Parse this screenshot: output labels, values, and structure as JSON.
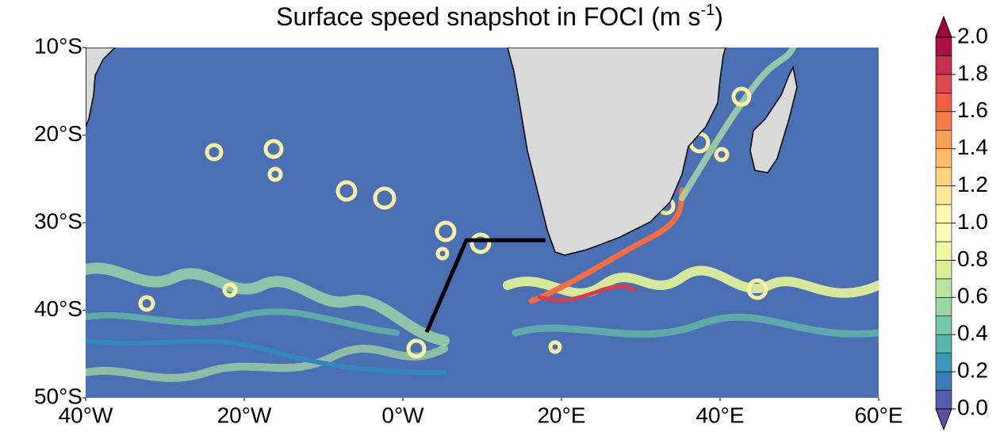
{
  "title": "Surface speed snapshot in FOCI (m s",
  "title_sup": "-1",
  "title_end": ")",
  "map": {
    "xlim": [
      -40,
      60
    ],
    "ylim": [
      -50,
      -10
    ],
    "xticks": [
      {
        "value": -40,
        "label": "40°W"
      },
      {
        "value": -20,
        "label": "20°W"
      },
      {
        "value": 0,
        "label": "0°W"
      },
      {
        "value": 20,
        "label": "20°E"
      },
      {
        "value": 40,
        "label": "40°E"
      },
      {
        "value": 60,
        "label": "60°E"
      }
    ],
    "yticks": [
      {
        "value": -10,
        "label": "10°S"
      },
      {
        "value": -20,
        "label": "20°S"
      },
      {
        "value": -30,
        "label": "30°S"
      },
      {
        "value": -40,
        "label": "40°S"
      },
      {
        "value": -50,
        "label": "50°S"
      }
    ],
    "section": {
      "lon": [
        3,
        8,
        18
      ],
      "lat": [
        -42.5,
        -32,
        -32
      ],
      "color": "#000000"
    }
  },
  "colorbar": {
    "lim": [
      0,
      2
    ],
    "step": 0.1,
    "colormap": [
      "#5e4fa2",
      "#3288bd",
      "#66c2a5",
      "#abdda4",
      "#e6f598",
      "#ffffbf",
      "#fee08b",
      "#fdae61",
      "#f46d43",
      "#d53e4f",
      "#9e0142"
    ],
    "ticks": [
      {
        "value": 0,
        "label": "0.0"
      },
      0.2,
      0.4,
      0.6,
      0.8,
      {
        "value": 1,
        "label": "1.0"
      },
      1.2,
      1.4,
      1.6,
      1.8,
      {
        "value": 2,
        "label": "2.0"
      }
    ]
  }
}
